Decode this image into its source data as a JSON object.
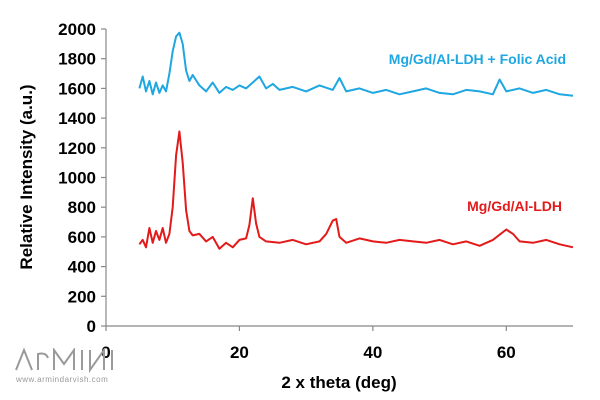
{
  "chart_data": {
    "type": "line",
    "xlabel": "2 x theta (deg)",
    "ylabel": "Relative Intensity (a.u.)",
    "xlim": [
      0,
      70
    ],
    "ylim": [
      0,
      2000
    ],
    "xticks": [
      0,
      20,
      40,
      60
    ],
    "yticks": [
      0,
      200,
      400,
      600,
      800,
      1000,
      1200,
      1400,
      1600,
      1800,
      2000
    ],
    "grid": false,
    "series": [
      {
        "name": "Mg/Gd/Al-LDH + Folic Acid",
        "color": "#1ea7e1",
        "x": [
          5,
          5.5,
          6,
          6.5,
          7,
          7.5,
          8,
          8.5,
          9,
          9.5,
          10,
          10.5,
          11,
          11.5,
          12,
          12.5,
          13,
          14,
          15,
          16,
          17,
          18,
          19,
          20,
          21,
          22,
          23,
          24,
          25,
          26,
          28,
          30,
          32,
          34,
          35,
          36,
          38,
          40,
          42,
          44,
          46,
          48,
          50,
          52,
          54,
          56,
          58,
          59,
          60,
          62,
          64,
          66,
          68,
          70
        ],
        "y": [
          1600,
          1680,
          1580,
          1650,
          1560,
          1640,
          1570,
          1620,
          1580,
          1700,
          1850,
          1950,
          1975,
          1900,
          1720,
          1650,
          1690,
          1620,
          1580,
          1640,
          1570,
          1610,
          1590,
          1620,
          1600,
          1640,
          1680,
          1600,
          1630,
          1590,
          1610,
          1580,
          1620,
          1590,
          1670,
          1580,
          1600,
          1570,
          1590,
          1560,
          1580,
          1600,
          1570,
          1560,
          1590,
          1580,
          1560,
          1660,
          1580,
          1600,
          1570,
          1590,
          1560,
          1550
        ]
      },
      {
        "name": "Mg/Gd/Al-LDH",
        "color": "#e31a1a",
        "x": [
          5,
          5.5,
          6,
          6.5,
          7,
          7.5,
          8,
          8.5,
          9,
          9.5,
          10,
          10.5,
          11,
          11.5,
          12,
          12.5,
          13,
          14,
          15,
          16,
          17,
          18,
          19,
          20,
          21,
          21.5,
          22,
          22.5,
          23,
          24,
          26,
          28,
          30,
          32,
          33,
          34,
          34.5,
          35,
          36,
          38,
          40,
          42,
          44,
          46,
          48,
          50,
          52,
          54,
          56,
          58,
          60,
          61,
          62,
          64,
          66,
          68,
          70
        ],
        "y": [
          550,
          580,
          530,
          660,
          560,
          640,
          580,
          660,
          560,
          620,
          800,
          1150,
          1310,
          1100,
          780,
          640,
          610,
          620,
          570,
          600,
          520,
          560,
          530,
          580,
          590,
          680,
          860,
          690,
          600,
          570,
          560,
          580,
          550,
          570,
          620,
          710,
          720,
          600,
          560,
          590,
          570,
          560,
          580,
          570,
          560,
          580,
          550,
          570,
          540,
          580,
          650,
          620,
          570,
          560,
          580,
          550,
          530
        ]
      }
    ]
  }
}
